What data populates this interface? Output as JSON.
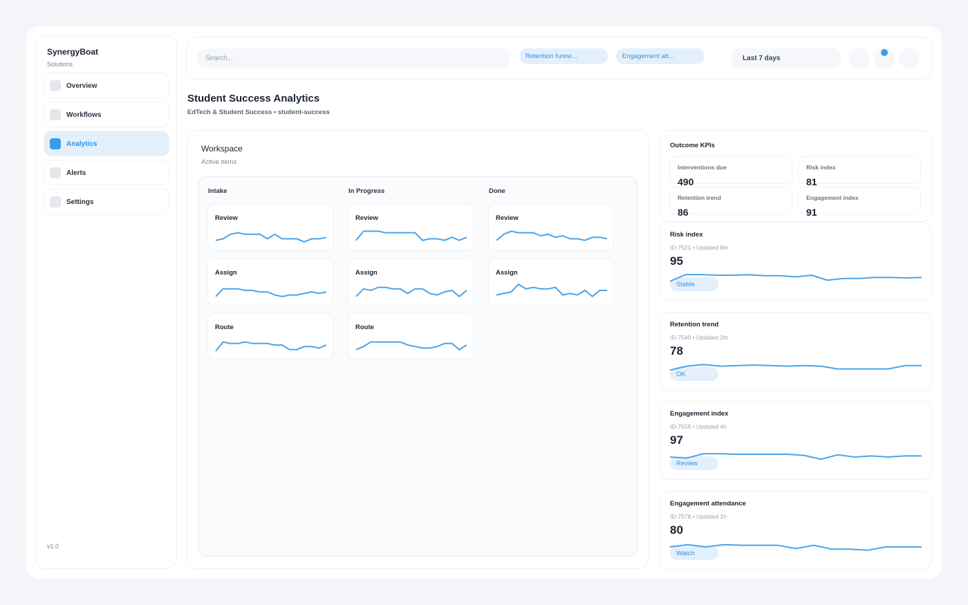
{
  "sidebar": {
    "brand": "SynergyBoat",
    "subtitle": "Solutions",
    "nav": [
      {
        "label": "Overview",
        "active": false
      },
      {
        "label": "Workflows",
        "active": false
      },
      {
        "label": "Analytics",
        "active": true
      },
      {
        "label": "Alerts",
        "active": false
      },
      {
        "label": "Settings",
        "active": false
      }
    ],
    "version": "v1.0"
  },
  "topbar": {
    "search_placeholder": "Search...",
    "filters": [
      "Retention funne...",
      "Engagement att..."
    ],
    "date_range": "Last 7 days"
  },
  "header": {
    "title": "Student Success Analytics",
    "subtitle": "EdTech & Student Success • student-success"
  },
  "workspace": {
    "title": "Workspace",
    "subtitle": "Active items",
    "columns": [
      {
        "name": "Intake",
        "cards": [
          {
            "title": "Review",
            "trend": [
              2,
              3,
              6,
              7,
              6,
              6,
              6,
              3,
              6,
              3,
              3,
              3,
              1,
              3,
              3,
              4
            ]
          },
          {
            "title": "Assign",
            "trend": [
              1,
              6,
              6,
              6,
              5,
              5,
              4,
              4,
              2,
              1,
              2,
              2,
              3,
              4,
              3,
              4
            ]
          },
          {
            "title": "Route",
            "trend": [
              1,
              7,
              6,
              6,
              7,
              6,
              6,
              6,
              5,
              5,
              2,
              2,
              4,
              4,
              3,
              5
            ]
          }
        ]
      },
      {
        "name": "In Progress",
        "cards": [
          {
            "title": "Review",
            "trend": [
              2,
              8,
              8,
              8,
              7,
              7,
              7,
              7,
              7,
              2,
              3,
              3,
              2,
              4,
              2,
              4
            ]
          },
          {
            "title": "Assign",
            "trend": [
              1,
              6,
              5,
              7,
              7,
              6,
              6,
              3,
              6,
              6,
              3,
              2,
              4,
              5,
              1,
              5
            ]
          },
          {
            "title": "Route",
            "trend": [
              2,
              4,
              7,
              7,
              7,
              7,
              7,
              5,
              4,
              3,
              3,
              4,
              6,
              6,
              2,
              5
            ]
          }
        ]
      },
      {
        "name": "Done",
        "cards": [
          {
            "title": "Review",
            "trend": [
              2,
              6,
              8,
              7,
              7,
              7,
              5,
              6,
              4,
              5,
              3,
              3,
              2,
              4,
              4,
              3
            ]
          },
          {
            "title": "Assign",
            "trend": [
              2,
              3,
              4,
              9,
              6,
              7,
              6,
              6,
              7,
              2,
              3,
              2,
              5,
              1,
              5,
              5
            ]
          }
        ]
      }
    ]
  },
  "kpis": {
    "title": "Outcome KPIs",
    "tiles": [
      {
        "label": "Interventions due",
        "value": 490
      },
      {
        "label": "Risk index",
        "value": 81
      },
      {
        "label": "Retention trend",
        "value": 86
      },
      {
        "label": "Engagement index",
        "value": 91
      }
    ]
  },
  "metrics": [
    {
      "title": "Risk index",
      "meta": "ID-7521 • Updated 8m",
      "value": 95,
      "status": "Stable",
      "trend": [
        2,
        8,
        8,
        7.5,
        7.5,
        8,
        7,
        7,
        6,
        7.5,
        3,
        4.5,
        4.5,
        5.5,
        5.5,
        5,
        5.5
      ]
    },
    {
      "title": "Retention trend",
      "meta": "ID-7540 • Updated 2m",
      "value": 78,
      "status": "OK",
      "trend": [
        3,
        6.5,
        8,
        6.5,
        7,
        7.5,
        7,
        6.5,
        7,
        6.5,
        4,
        4,
        4,
        4,
        7,
        7
      ]
    },
    {
      "title": "Engagement index",
      "meta": "ID-7559 • Updated 4h",
      "value": 97,
      "status": "Review",
      "trend": [
        5,
        4,
        8,
        8,
        7.5,
        7.5,
        7.5,
        7.5,
        6.5,
        3,
        7,
        5,
        6,
        5,
        6,
        6
      ]
    },
    {
      "title": "Engagement attendance",
      "meta": "ID-7578 • Updated 1h",
      "value": 80,
      "status": "Watch",
      "trend": [
        5,
        7,
        5,
        7,
        6.5,
        6.5,
        6.5,
        3.5,
        6.5,
        3,
        3,
        2,
        5,
        5,
        5
      ]
    }
  ]
}
